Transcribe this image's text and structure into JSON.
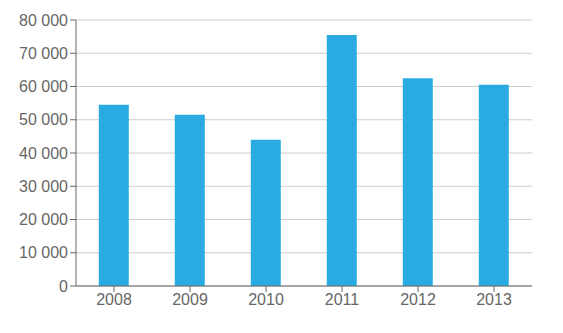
{
  "chart_data": {
    "type": "bar",
    "categories": [
      "2008",
      "2009",
      "2010",
      "2011",
      "2012",
      "2013"
    ],
    "values": [
      54500,
      51500,
      44000,
      75500,
      62500,
      60500
    ],
    "color": "#29ABE2",
    "ylim": [
      0,
      80000
    ],
    "yticks": [
      0,
      {
        "value": 10000,
        "label": "10 000"
      },
      {
        "value": 20000,
        "label": "20 000"
      },
      {
        "value": 30000,
        "label": "30 000"
      },
      {
        "value": 40000,
        "label": "40 000"
      },
      {
        "value": 50000,
        "label": "50 000"
      },
      {
        "value": 60000,
        "label": "60 000"
      },
      {
        "value": 70000,
        "label": "70 000"
      },
      {
        "value": 80000,
        "label": "80 000"
      }
    ],
    "grid": true
  }
}
